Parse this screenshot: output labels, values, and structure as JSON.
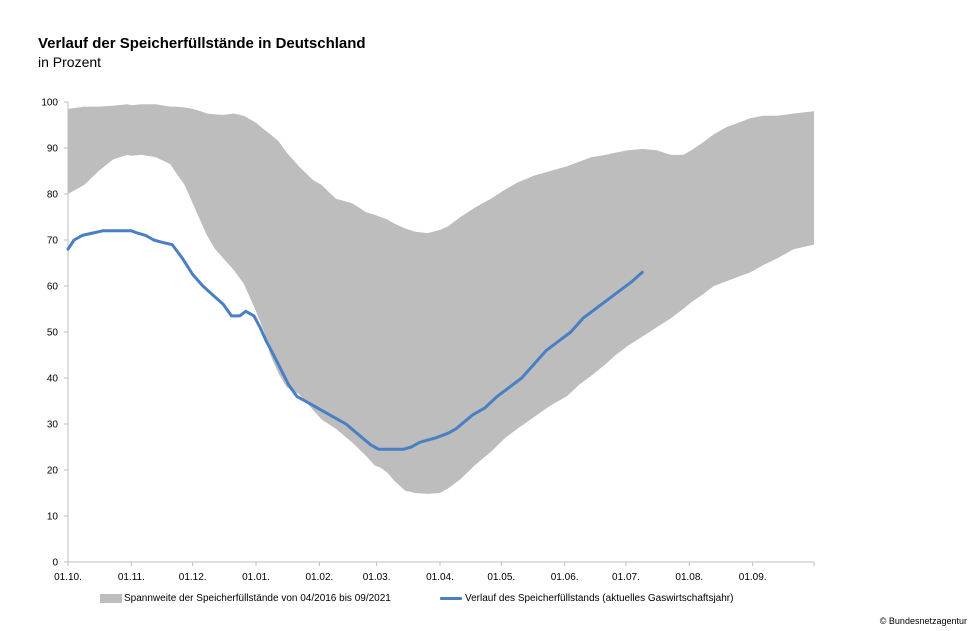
{
  "chart_data": {
    "type": "area",
    "title": "Verlauf der Speicherfüllstände in Deutschland",
    "subtitle": "in Prozent",
    "x_tick_labels": [
      "01.10.",
      "01.11.",
      "01.12.",
      "01.01.",
      "01.02.",
      "01.03.",
      "01.04.",
      "01.05.",
      "01.06.",
      "01.07.",
      "01.08.",
      "01.09."
    ],
    "x_tick_days": [
      0,
      31,
      61,
      92,
      123,
      151,
      182,
      212,
      243,
      273,
      304,
      335
    ],
    "x_range_days": [
      0,
      365
    ],
    "y_ticks": [
      0,
      10,
      20,
      30,
      40,
      50,
      60,
      70,
      80,
      90,
      100
    ],
    "ylim": [
      0,
      100
    ],
    "series": [
      {
        "name": "Spannweite der Speicherfüllstände von 04/2016 bis 09/2021",
        "kind": "band",
        "color": "#bdbdbd",
        "x": [
          0,
          8,
          15,
          22,
          29,
          31,
          36,
          43,
          50,
          53,
          57,
          61,
          65,
          68,
          72,
          76,
          81,
          86,
          92,
          96,
          99,
          103,
          107,
          113,
          120,
          124,
          131,
          139,
          146,
          150,
          153,
          156,
          160,
          165,
          170,
          176,
          182,
          186,
          192,
          199,
          207,
          214,
          220,
          228,
          236,
          244,
          250,
          256,
          263,
          268,
          274,
          281,
          288,
          295,
          301,
          305,
          310,
          316,
          322,
          328,
          334,
          340,
          347,
          355,
          365
        ],
        "upper": [
          98.5,
          99,
          99,
          99.2,
          99.5,
          99.3,
          99.5,
          99.5,
          99,
          99,
          98.8,
          98.5,
          98,
          97.5,
          97.3,
          97.2,
          97.5,
          97,
          95.5,
          94,
          93,
          91.5,
          89,
          86,
          83,
          82,
          79,
          78,
          76,
          75.5,
          75,
          74.5,
          73.5,
          72.5,
          71.8,
          71.5,
          72.2,
          73,
          75,
          77,
          79,
          81,
          82.5,
          84,
          85,
          86,
          87,
          88,
          88.5,
          89,
          89.5,
          89.8,
          89.5,
          88.5,
          88.5,
          89.5,
          91,
          93,
          94.5,
          95.5,
          96.5,
          97,
          97,
          97.5,
          98
        ],
        "lower": [
          80,
          82,
          85,
          87.5,
          88.5,
          88.3,
          88.5,
          88,
          86.5,
          84.5,
          82,
          78,
          74,
          71,
          68,
          66,
          63.5,
          60.5,
          54.5,
          50,
          45,
          41,
          38,
          36.5,
          33,
          31,
          29,
          26,
          23,
          21,
          20.5,
          19.5,
          17.5,
          15.5,
          15,
          14.8,
          15,
          16,
          18,
          21,
          24,
          27,
          29,
          31.5,
          34,
          36,
          38.5,
          40.5,
          43,
          45,
          47,
          49,
          51,
          53,
          55,
          56.5,
          58,
          60,
          61,
          62,
          63,
          64.5,
          66,
          68,
          69
        ]
      },
      {
        "name": "Verlauf des Speicherfüllstands (aktuelles Gaswirtschaftsjahr)",
        "kind": "line",
        "color": "#4a7fc4",
        "x": [
          0,
          3,
          7,
          12,
          17,
          22,
          27,
          31,
          34,
          38,
          42,
          46,
          51,
          56,
          61,
          66,
          71,
          76,
          80,
          84,
          87,
          91,
          94,
          97,
          100,
          104,
          108,
          112,
          116,
          120,
          124,
          128,
          132,
          136,
          140,
          144,
          148,
          152,
          156,
          160,
          164,
          168,
          172,
          176,
          180,
          186,
          190,
          194,
          198,
          204,
          210,
          216,
          222,
          228,
          234,
          240,
          246,
          252,
          258,
          264,
          270,
          276,
          281
        ],
        "y": [
          68,
          70,
          71,
          71.5,
          72,
          72,
          72,
          72,
          71.5,
          71,
          70,
          69.5,
          69,
          66,
          62.5,
          60,
          58,
          56,
          53.5,
          53.5,
          54.5,
          53.5,
          51,
          48,
          45.5,
          42,
          38.5,
          36,
          35,
          34,
          33,
          32,
          31,
          30,
          28.5,
          27,
          25.5,
          24.5,
          24.5,
          24.5,
          24.5,
          25,
          26,
          26.5,
          27,
          28,
          29,
          30.5,
          32,
          33.5,
          36,
          38,
          40,
          43,
          46,
          48,
          50,
          53,
          55,
          57,
          59,
          61,
          63
        ]
      }
    ],
    "legend_placement": "bottom",
    "credit": "© Bundesnetzagentur"
  }
}
